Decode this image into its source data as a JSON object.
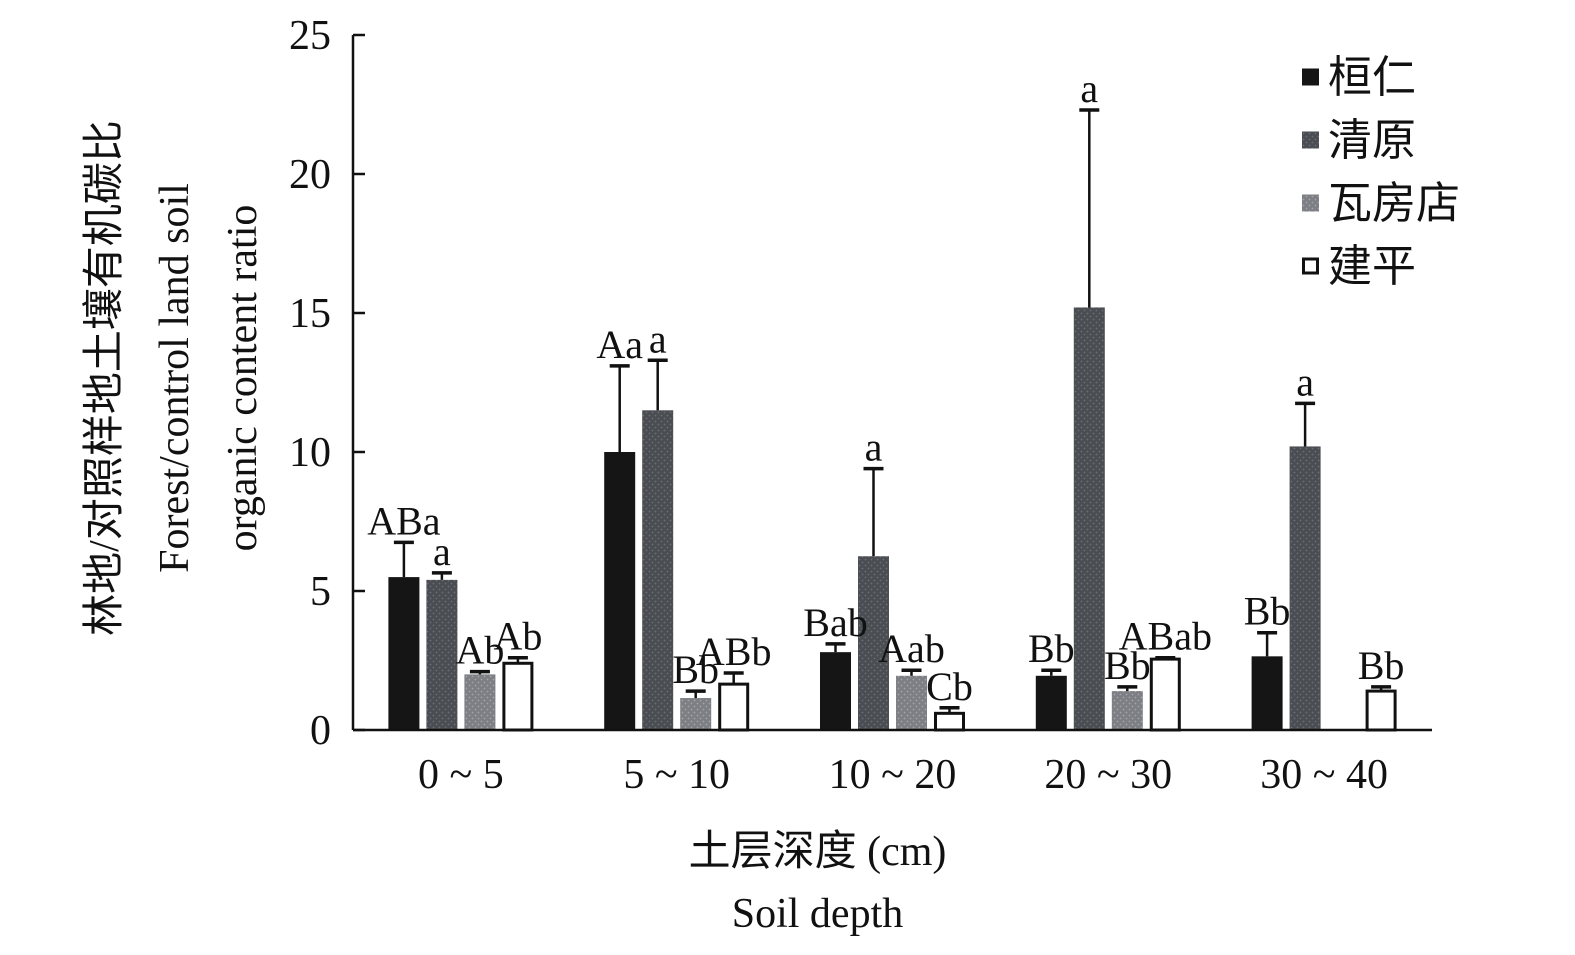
{
  "chart_data": {
    "type": "bar",
    "xlabel": [
      "土层深度 (cm)",
      "Soil depth"
    ],
    "ylabel": [
      "林地/对照样地土壤有机碳比",
      "Forest/control land soil",
      "organic content ratio"
    ],
    "ylim": [
      0,
      25
    ],
    "yticks": [
      0,
      5,
      10,
      15,
      20,
      25
    ],
    "categories": [
      "0 ~ 5",
      "5 ~ 10",
      "10 ~ 20",
      "20 ~ 30",
      "30 ~ 40"
    ],
    "legend_position": "top-right",
    "series": [
      {
        "name": "桓仁",
        "color": "#151515",
        "pattern": "solid",
        "values": [
          5.5,
          10.0,
          2.8,
          1.95,
          2.65
        ],
        "errors": [
          1.25,
          3.1,
          0.3,
          0.2,
          0.85
        ],
        "labels": [
          "ABa",
          "Aa",
          "Bab",
          "Bb",
          "Bb"
        ]
      },
      {
        "name": "清原",
        "color": "#4a4d52",
        "pattern": "dotted-dark",
        "values": [
          5.4,
          11.5,
          6.25,
          15.2,
          10.2
        ],
        "errors": [
          0.25,
          1.8,
          3.15,
          7.1,
          1.55
        ],
        "labels": [
          "a",
          "a",
          "a",
          "a",
          "a"
        ]
      },
      {
        "name": "瓦房店",
        "color": "#7d7f84",
        "pattern": "dotted-light",
        "values": [
          2.0,
          1.15,
          1.95,
          1.4,
          null
        ],
        "errors": [
          0.1,
          0.25,
          0.2,
          0.15,
          null
        ],
        "labels": [
          "Ab",
          "Bb",
          "Aab",
          "Bb",
          ""
        ]
      },
      {
        "name": "建平",
        "color": "#ffffff",
        "pattern": "hollow",
        "values": [
          2.4,
          1.65,
          0.6,
          2.55,
          1.4
        ],
        "errors": [
          0.2,
          0.4,
          0.2,
          0.05,
          0.15
        ],
        "labels": [
          "Ab",
          "ABb",
          "Cb",
          "ABab",
          "Bb"
        ]
      }
    ]
  }
}
